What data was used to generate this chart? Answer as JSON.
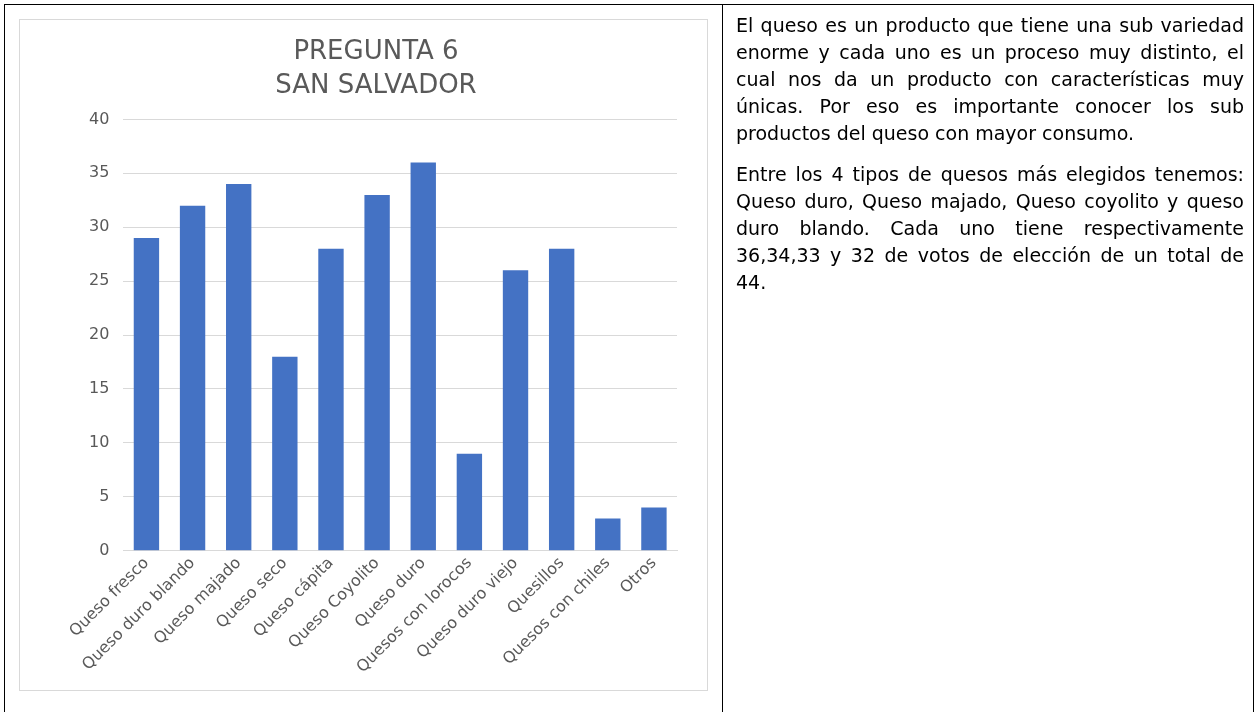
{
  "chart_data": {
    "type": "bar",
    "title": "PREGUNTA 6",
    "subtitle": "SAN SALVADOR",
    "categories": [
      "Queso fresco",
      "Queso duro blando",
      "Queso majado",
      "Queso seco",
      "Queso cápita",
      "Queso Coyolito",
      "Queso duro",
      "Quesos con lorocos",
      "Queso duro viejo",
      "Quesillos",
      "Quesos con chiles",
      "Otros"
    ],
    "values": [
      29,
      32,
      34,
      18,
      28,
      33,
      36,
      9,
      26,
      28,
      3,
      4
    ],
    "color": "#4472c4",
    "ylim": [
      0,
      40
    ],
    "yticks": [
      0,
      5,
      10,
      15,
      20,
      25,
      30,
      35,
      40
    ],
    "grid": "y",
    "legend": false,
    "annotations": [
      "El queso es un producto que tiene una sub variedad enorme y cada uno es un proceso muy distinto, el cual nos da un producto con características muy únicas. Por eso es importante conocer los sub productos del queso con mayor consumo.",
      "Entre los 4 tipos de quesos más elegidos tenemos: Queso duro, Queso majado, Queso coyolito y queso duro blando. Cada uno tiene respectivamente 36,34,33 y 32 de votos de elección de un total de 44."
    ]
  }
}
